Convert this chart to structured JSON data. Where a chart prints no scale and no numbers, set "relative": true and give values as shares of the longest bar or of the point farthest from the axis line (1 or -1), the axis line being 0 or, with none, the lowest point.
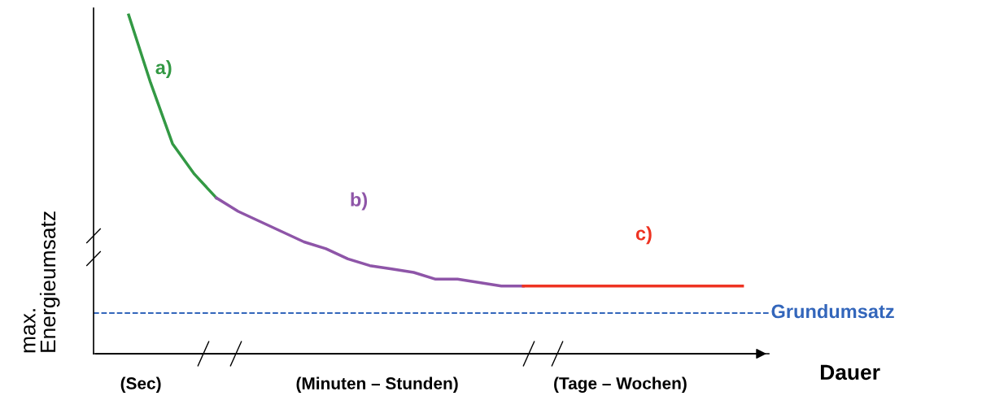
{
  "chart_data": {
    "type": "line",
    "relative": true,
    "xlabel": "Dauer",
    "ylabel": "max.\nEnergieumsatz",
    "categories": [
      null,
      null,
      null,
      null,
      null,
      null,
      null,
      null,
      null,
      null,
      null,
      null,
      null,
      null,
      null,
      null,
      null,
      null,
      null,
      null,
      null,
      null,
      null,
      null,
      null,
      null,
      null,
      null,
      null
    ],
    "series": [
      {
        "name": "a)",
        "color": "#339944",
        "values": [
          1.0,
          0.8,
          0.62,
          0.53,
          0.46,
          null,
          null,
          null,
          null,
          null,
          null,
          null,
          null,
          null,
          null,
          null,
          null,
          null,
          null,
          null,
          null,
          null,
          null,
          null,
          null,
          null,
          null,
          null,
          null
        ]
      },
      {
        "name": "b)",
        "color": "#8e55a8",
        "values": [
          null,
          null,
          null,
          null,
          0.46,
          0.42,
          0.39,
          0.36,
          0.33,
          0.31,
          0.28,
          0.26,
          0.25,
          0.24,
          0.22,
          0.22,
          0.21,
          0.2,
          0.2,
          null,
          null,
          null,
          null,
          null,
          null,
          null,
          null,
          null,
          null
        ]
      },
      {
        "name": "c)",
        "color": "#ee3322",
        "values": [
          null,
          null,
          null,
          null,
          null,
          null,
          null,
          null,
          null,
          null,
          null,
          null,
          null,
          null,
          null,
          null,
          null,
          null,
          0.2,
          0.2,
          0.2,
          0.2,
          0.2,
          0.2,
          0.2,
          0.2,
          0.2,
          0.2,
          0.2
        ]
      }
    ],
    "ref_lines": [
      {
        "axis": "y",
        "value": 0.12,
        "label": "Grundumsatz",
        "color": "#3366bb",
        "line_style": "dashed"
      }
    ],
    "annotations": [
      "(Sec)",
      "(Minuten – Stunden)",
      "(Tage – Wochen)"
    ],
    "legend": false,
    "marker": "none",
    "line_style": "solid"
  }
}
